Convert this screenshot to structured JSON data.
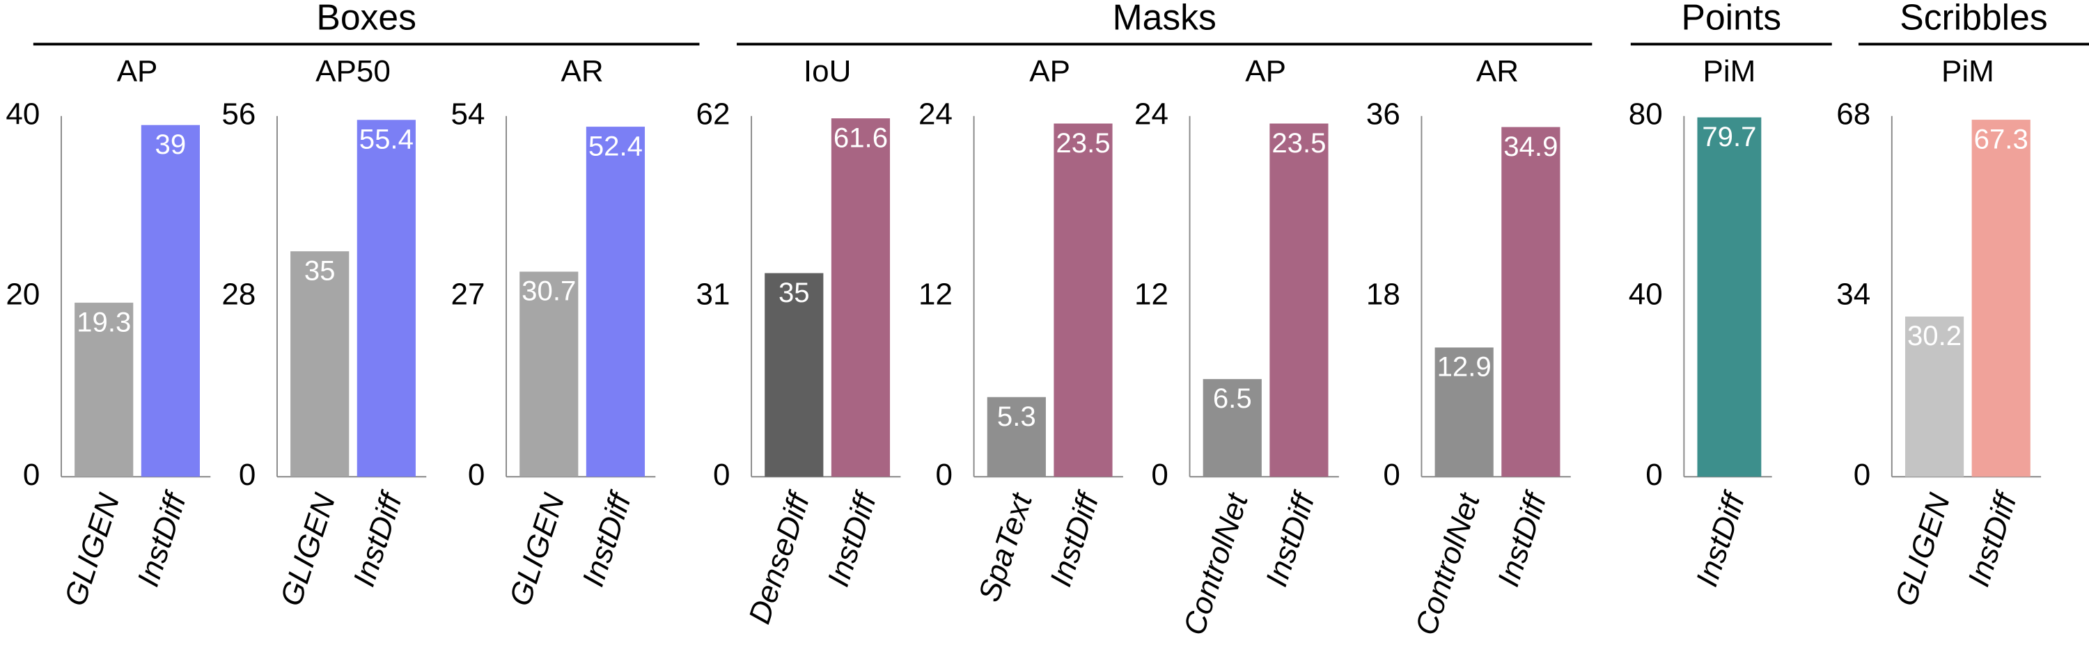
{
  "groups": [
    {
      "title": "Boxes"
    },
    {
      "title": "Masks"
    },
    {
      "title": "Points"
    },
    {
      "title": "Scribbles"
    }
  ],
  "chart_data": [
    {
      "type": "bar",
      "title": "AP",
      "categories": [
        "GLIGEN",
        "InstDiff"
      ],
      "values": [
        19.3,
        39
      ],
      "colors": [
        "#a6a6a6",
        "#7b7ff5"
      ],
      "ylim": [
        0,
        40
      ],
      "yticks": [
        0,
        20,
        40
      ]
    },
    {
      "type": "bar",
      "title": "AP50",
      "categories": [
        "GLIGEN",
        "InstDiff"
      ],
      "values": [
        35,
        55.4
      ],
      "colors": [
        "#a6a6a6",
        "#7b7ff5"
      ],
      "ylim": [
        0,
        56
      ],
      "yticks": [
        0,
        28,
        56
      ]
    },
    {
      "type": "bar",
      "title": "AR",
      "categories": [
        "GLIGEN",
        "InstDiff"
      ],
      "values": [
        30.7,
        52.4
      ],
      "colors": [
        "#a6a6a6",
        "#7b7ff5"
      ],
      "ylim": [
        0,
        54
      ],
      "yticks": [
        0,
        27,
        54
      ]
    },
    {
      "type": "bar",
      "title": "IoU",
      "categories": [
        "DenseDiff",
        "InstDiff"
      ],
      "values": [
        35,
        61.6
      ],
      "colors": [
        "#5f5f5f",
        "#a86583"
      ],
      "ylim": [
        0,
        62
      ],
      "yticks": [
        0,
        31,
        62
      ]
    },
    {
      "type": "bar",
      "title": "AP",
      "categories": [
        "SpaText",
        "InstDiff"
      ],
      "values": [
        5.3,
        23.5
      ],
      "colors": [
        "#8f8f8f",
        "#a86583"
      ],
      "ylim": [
        0,
        24
      ],
      "yticks": [
        0,
        12,
        24
      ]
    },
    {
      "type": "bar",
      "title": "AP",
      "categories": [
        "ControlNet",
        "InstDiff"
      ],
      "values": [
        6.5,
        23.5
      ],
      "colors": [
        "#8f8f8f",
        "#a86583"
      ],
      "ylim": [
        0,
        24
      ],
      "yticks": [
        0,
        12,
        24
      ]
    },
    {
      "type": "bar",
      "title": "AR",
      "categories": [
        "ControlNet",
        "InstDiff"
      ],
      "values": [
        12.9,
        34.9
      ],
      "colors": [
        "#8f8f8f",
        "#a86583"
      ],
      "ylim": [
        0,
        36
      ],
      "yticks": [
        0,
        18,
        36
      ]
    },
    {
      "type": "bar",
      "title": "PiM",
      "categories": [
        "InstDiff"
      ],
      "values": [
        79.7
      ],
      "colors": [
        "#3d8f8c"
      ],
      "ylim": [
        0,
        80
      ],
      "yticks": [
        0,
        40,
        80
      ]
    },
    {
      "type": "bar",
      "title": "PiM",
      "categories": [
        "GLIGEN",
        "InstDiff"
      ],
      "values": [
        30.2,
        67.3
      ],
      "colors": [
        "#c4c4c4",
        "#f0a29a"
      ],
      "ylim": [
        0,
        68
      ],
      "yticks": [
        0,
        34,
        68
      ]
    }
  ]
}
